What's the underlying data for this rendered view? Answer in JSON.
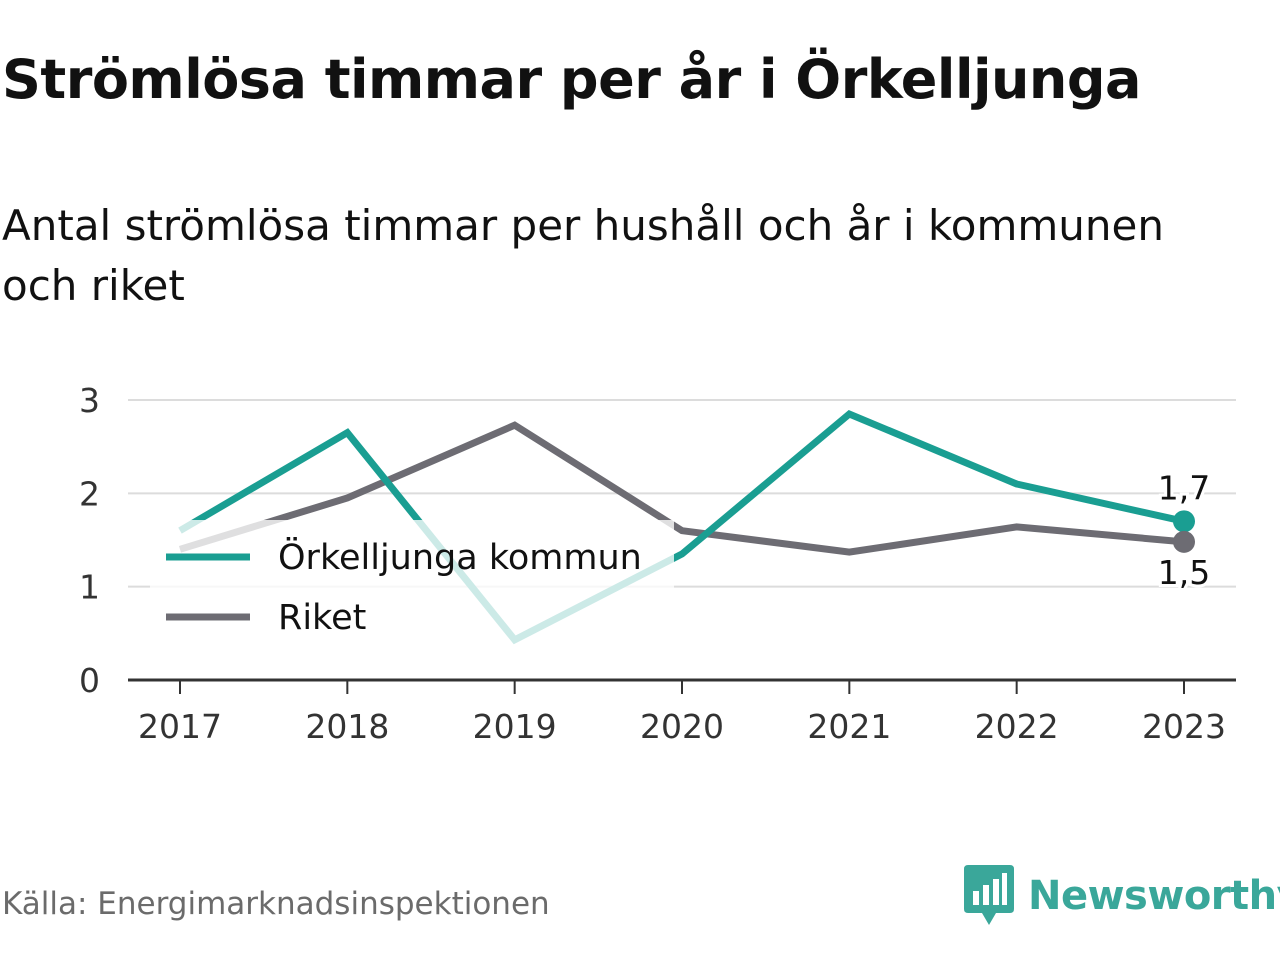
{
  "header": {
    "title": "Strömlösa timmar per år i Örkelljunga",
    "subtitle": "Antal strömlösa timmar per hushåll och år i kommunen och riket"
  },
  "footer": {
    "source": "Källa: Energimarknadsinspektionen",
    "brand": "Newsworthy",
    "brand_icon": "bar-chart-speech-bubble-icon"
  },
  "chart_data": {
    "type": "line",
    "x": [
      "2017",
      "2018",
      "2019",
      "2020",
      "2021",
      "2022",
      "2023"
    ],
    "ylim": [
      0,
      3
    ],
    "yticks": [
      "0",
      "1",
      "2",
      "3"
    ],
    "grid": true,
    "legend_position": "left-middle",
    "series": [
      {
        "name": "Örkelljunga kommun",
        "color": "#1a9e92",
        "values": [
          1.6,
          2.65,
          0.43,
          1.35,
          2.85,
          2.1,
          1.7
        ],
        "end_label": "1,7"
      },
      {
        "name": "Riket",
        "color": "#6d6c73",
        "values": [
          1.4,
          1.95,
          2.73,
          1.6,
          1.37,
          1.64,
          1.48
        ],
        "end_label": "1,5"
      }
    ]
  }
}
